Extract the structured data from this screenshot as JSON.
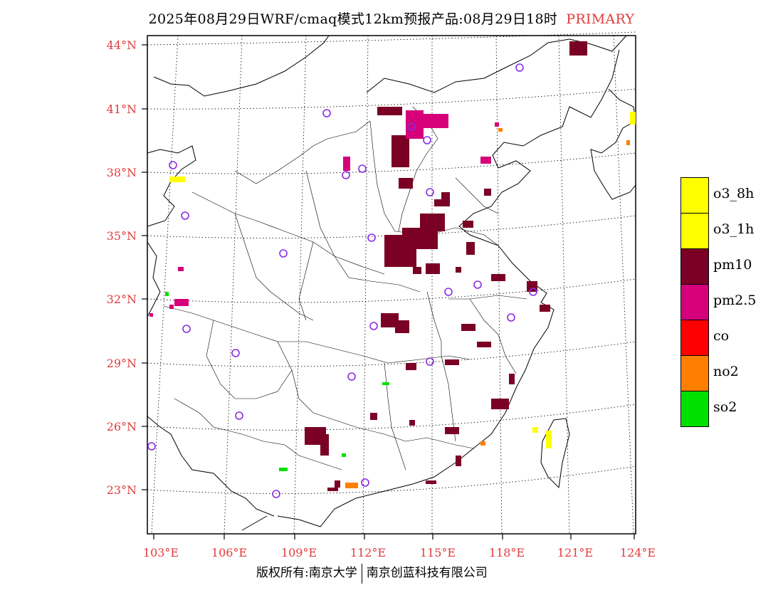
{
  "title": {
    "main": "2025年08月29日WRF/cmaq模式12km预报产品:08月29日18时",
    "tag": "PRIMARY"
  },
  "axes": {
    "lon_labels": [
      "103°E",
      "106°E",
      "109°E",
      "112°E",
      "115°E",
      "118°E",
      "121°E",
      "124°E"
    ],
    "lat_labels": [
      "44°N",
      "41°N",
      "38°N",
      "35°N",
      "32°N",
      "29°N",
      "26°N",
      "23°N"
    ]
  },
  "legend": {
    "items": [
      {
        "label": "o3_8h",
        "color": "#ffff00"
      },
      {
        "label": "o3_1h",
        "color": "#ffff00"
      },
      {
        "label": "pm10",
        "color": "#7a0025"
      },
      {
        "label": "pm2.5",
        "color": "#d5007a"
      },
      {
        "label": "co",
        "color": "#ff0000"
      },
      {
        "label": "no2",
        "color": "#ff7f00"
      },
      {
        "label": "so2",
        "color": "#00e000"
      }
    ]
  },
  "footer": {
    "left": "版权所有:南京大学",
    "right": "南京创蓝科技有限公司"
  },
  "colors": {
    "label_red": "#e33a3a",
    "station_marker": "#8a2be2"
  }
}
